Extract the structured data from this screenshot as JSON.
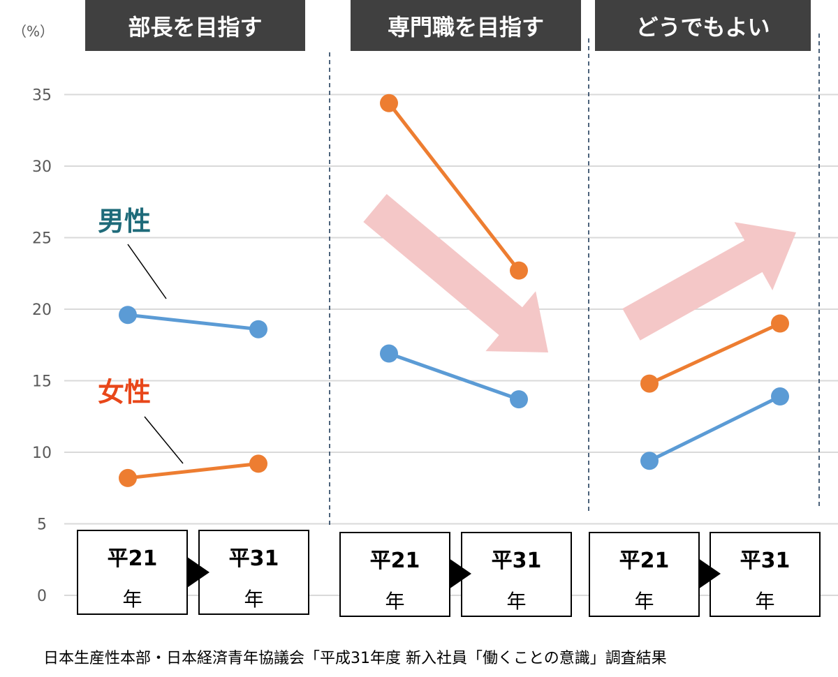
{
  "chart_data": {
    "type": "line",
    "unit_label": "（%）",
    "y_ticks": [
      0,
      5,
      10,
      15,
      20,
      25,
      30,
      35
    ],
    "ylim": [
      0,
      35
    ],
    "grid": true,
    "colors": {
      "male": "#5b9bd5",
      "female": "#ed7d31",
      "male_label": "#1f6b7a",
      "female_label": "#e8471a",
      "panel_header": "#404040",
      "trend_arrow": "#f4c7c7"
    },
    "series_labels": {
      "male": "男性",
      "female": "女性"
    },
    "panels": [
      {
        "title": "部長を目指す",
        "categories": [
          {
            "top": "平21",
            "bottom": "年"
          },
          {
            "top": "平31",
            "bottom": "年"
          }
        ],
        "series": [
          {
            "name": "男性",
            "values": [
              19.6,
              18.6
            ]
          },
          {
            "name": "女性",
            "values": [
              8.2,
              9.2
            ]
          }
        ],
        "trend": "flat"
      },
      {
        "title": "専門職を目指す",
        "categories": [
          {
            "top": "平21",
            "bottom": "年"
          },
          {
            "top": "平31",
            "bottom": "年"
          }
        ],
        "series": [
          {
            "name": "男性",
            "values": [
              16.9,
              13.7
            ]
          },
          {
            "name": "女性",
            "values": [
              34.4,
              22.7
            ]
          }
        ],
        "trend": "down"
      },
      {
        "title": "どうでもよい",
        "categories": [
          {
            "top": "平21",
            "bottom": "年"
          },
          {
            "top": "平31",
            "bottom": "年"
          }
        ],
        "series": [
          {
            "name": "男性",
            "values": [
              9.4,
              13.9
            ]
          },
          {
            "name": "女性",
            "values": [
              14.8,
              19.0
            ]
          }
        ],
        "trend": "up"
      }
    ]
  },
  "source": "日本生産性本部・日本経済青年協議会「平成31年度 新入社員「働くことの意識」調査結果"
}
